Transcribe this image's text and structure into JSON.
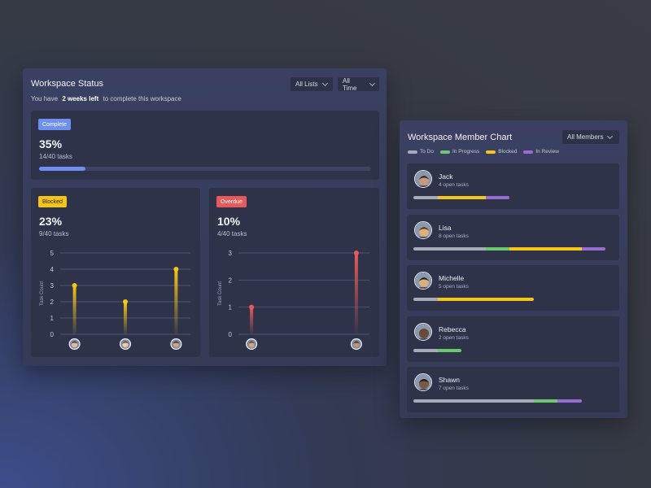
{
  "workspace_status": {
    "title": "Workspace Status",
    "subtitle_prefix": "You have",
    "subtitle_bold": "2 weeks left",
    "subtitle_suffix": "to complete this workspace",
    "filters": {
      "lists": "All Lists",
      "time": "All Time"
    },
    "complete": {
      "badge": "Complete",
      "badge_color": "#6f8ff0",
      "percent": "35%",
      "tasks": "14/40 tasks",
      "progress": 0.35
    },
    "blocked": {
      "badge": "Blocked",
      "badge_color": "#f5c518",
      "percent": "23%",
      "tasks": "9/40 tasks"
    },
    "overdue": {
      "badge": "Overdue",
      "badge_color": "#e85a5a",
      "percent": "10%",
      "tasks": "4/40 tasks"
    }
  },
  "chart_data": [
    {
      "type": "bar",
      "ylabel": "Task Count",
      "ylim": [
        0,
        5
      ],
      "yticks": [
        "0",
        "1",
        "2",
        "3",
        "4",
        "5"
      ],
      "values": [
        3,
        2,
        4
      ],
      "color": "#f5c518",
      "avatars": [
        "avatar-1",
        "avatar-2",
        "avatar-3"
      ]
    },
    {
      "type": "bar",
      "ylabel": "Task Count",
      "ylim": [
        0,
        3
      ],
      "yticks": [
        "0",
        "1",
        "2",
        "3"
      ],
      "values": [
        1,
        3
      ],
      "color": "#e85a5a",
      "avatars": [
        "avatar-4",
        "avatar-5"
      ]
    }
  ],
  "member_chart": {
    "title": "Workspace Member Chart",
    "filter": "All Members",
    "legend": [
      {
        "label": "To Do",
        "color": "#a7adb8"
      },
      {
        "label": "In Progress",
        "color": "#6cc86e"
      },
      {
        "label": "Blocked",
        "color": "#f5c518"
      },
      {
        "label": "In Review",
        "color": "#9a6bd0"
      }
    ],
    "members": [
      {
        "name": "Jack",
        "open": "4 open tasks",
        "segments": [
          1,
          0,
          2,
          1
        ],
        "avatar_color": "#c99a7a"
      },
      {
        "name": "Lisa",
        "open": "8 open tasks",
        "segments": [
          3,
          1,
          3,
          1
        ],
        "avatar_color": "#e0b07a"
      },
      {
        "name": "Michelle",
        "open": "5 open tasks",
        "segments": [
          1,
          0,
          4,
          0
        ],
        "avatar_color": "#d8b07c"
      },
      {
        "name": "Rebecca",
        "open": "2 open tasks",
        "segments": [
          1,
          1,
          0,
          0
        ],
        "avatar_color": "#6a4a3a"
      },
      {
        "name": "Shawn",
        "open": "7 open tasks",
        "segments": [
          5,
          1,
          0,
          1
        ],
        "avatar_color": "#7a5a44"
      }
    ]
  }
}
